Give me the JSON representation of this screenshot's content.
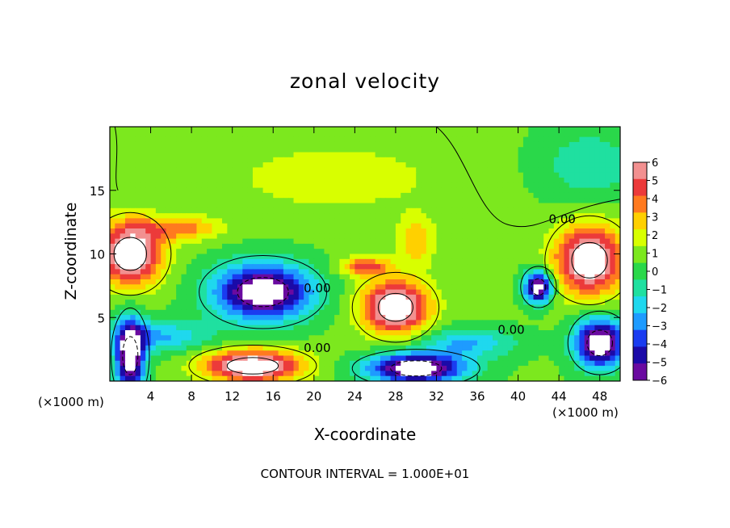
{
  "chart_data": {
    "type": "heatmap",
    "title": "zonal velocity",
    "xlabel": "X-coordinate",
    "ylabel": "Z-coordinate",
    "x_unit_label": "(×1000 m)",
    "x_unit_label_right": "(×1000 m)",
    "footnote": "CONTOUR INTERVAL = 1.000E+01",
    "xlim": [
      0,
      50
    ],
    "ylim": [
      0,
      20
    ],
    "x_ticks": [
      "4",
      "8",
      "12",
      "16",
      "20",
      "24",
      "28",
      "32",
      "36",
      "40",
      "44",
      "48"
    ],
    "y_ticks": [
      "5",
      "10",
      "15"
    ],
    "colorbar": {
      "range": [
        -6,
        6
      ],
      "ticks": [
        "6",
        "5",
        "4",
        "3",
        "2",
        "1",
        "0",
        "−1",
        "−2",
        "−3",
        "−4",
        "−5",
        "−6"
      ],
      "colors": [
        "#f29090",
        "#ec3a3a",
        "#ff7a1f",
        "#ffd000",
        "#d8ff00",
        "#7ce81e",
        "#2ad84a",
        "#1fe0a0",
        "#1fd8ee",
        "#1e9bff",
        "#1a3cf0",
        "#1b0aa8",
        "#6a0aa0"
      ]
    },
    "contour_labels": [
      "0.00",
      "0.00",
      "0.00",
      "0.00"
    ],
    "regions": [
      {
        "x": 2,
        "z": 10,
        "rx": 3.2,
        "rz": 2.6,
        "value": 7
      },
      {
        "x": 15,
        "z": 7,
        "rx": 5,
        "rz": 2.3,
        "value": -8
      },
      {
        "x": 28,
        "z": 5.8,
        "rx": 3.4,
        "rz": 2.2,
        "value": 7
      },
      {
        "x": 14,
        "z": 1.2,
        "rx": 5,
        "rz": 1.3,
        "value": 7
      },
      {
        "x": 30,
        "z": 1,
        "rx": 5,
        "rz": 1.2,
        "value": -8
      },
      {
        "x": 47,
        "z": 9.5,
        "rx": 3.5,
        "rz": 2.8,
        "value": 7
      },
      {
        "x": 42,
        "z": 7.4,
        "rx": 1.4,
        "rz": 1.3,
        "value": -8
      },
      {
        "x": 2,
        "z": 2,
        "rx": 1.5,
        "rz": 3,
        "value": -8
      },
      {
        "x": 48,
        "z": 3,
        "rx": 2.5,
        "rz": 2,
        "value": -8
      },
      {
        "x": 25,
        "z": 9,
        "rx": 2.5,
        "rz": 0.8,
        "value": 4
      },
      {
        "x": 7,
        "z": 12,
        "rx": 4,
        "rz": 1,
        "value": 3
      },
      {
        "x": 30,
        "z": 11,
        "rx": 2,
        "rz": 2,
        "value": 2.5
      },
      {
        "x": 22,
        "z": 16,
        "rx": 12,
        "rz": 3,
        "value": 1.3
      },
      {
        "x": 47,
        "z": 17,
        "rx": 5,
        "rz": 3,
        "value": -1.8
      },
      {
        "x": 5,
        "z": 3.5,
        "rx": 5,
        "rz": 1.3,
        "value": -3
      },
      {
        "x": 35,
        "z": 3,
        "rx": 5,
        "rz": 1.2,
        "value": -3
      }
    ],
    "colorscale_min": -6,
    "colorscale_max": 6
  }
}
